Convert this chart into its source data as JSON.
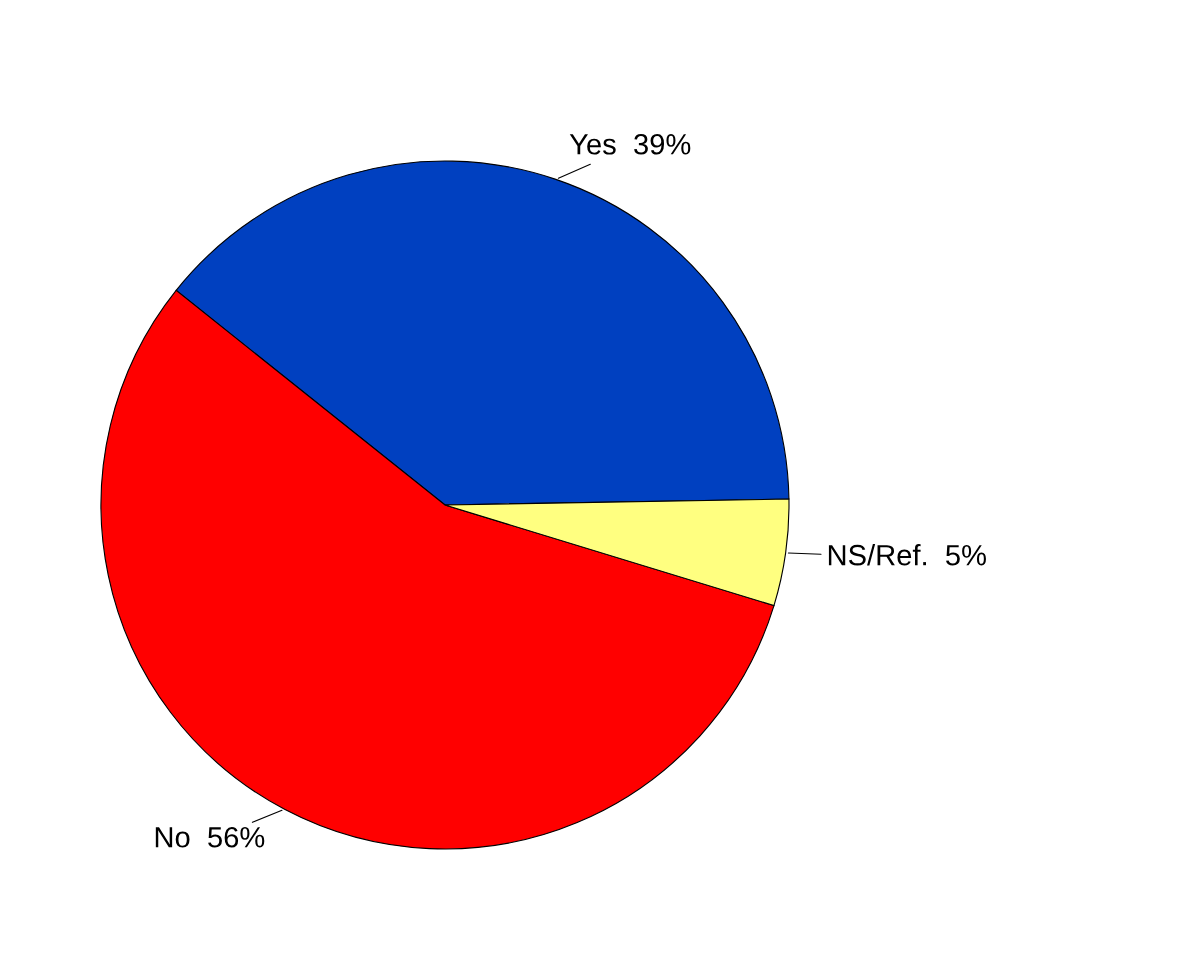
{
  "chart_data": {
    "type": "pie",
    "categories": [
      "Yes",
      "No",
      "NS/Ref."
    ],
    "values": [
      39,
      56,
      5
    ],
    "value_labels": [
      "39%",
      "56%",
      "5%"
    ],
    "colors": [
      "#0040c0",
      "#ff0000",
      "#ffff80"
    ]
  }
}
